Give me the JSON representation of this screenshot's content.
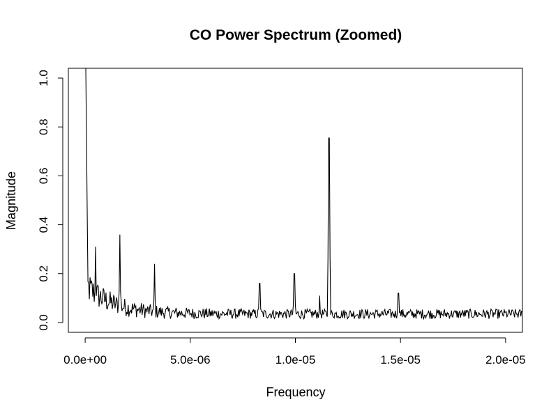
{
  "chart_data": {
    "type": "line",
    "title": "CO Power Spectrum (Zoomed)",
    "xlabel": "Frequency",
    "ylabel": "Magnitude",
    "xlim": [
      -8e-07,
      2.08e-05
    ],
    "ylim": [
      -0.04,
      1.04
    ],
    "x_ticks": [
      {
        "value": 0,
        "label": "0.0e+00"
      },
      {
        "value": 5e-06,
        "label": "5.0e-06"
      },
      {
        "value": 1e-05,
        "label": "1.0e-05"
      },
      {
        "value": 1.5e-05,
        "label": "1.5e-05"
      },
      {
        "value": 2e-05,
        "label": "2.0e-05"
      }
    ],
    "y_ticks": [
      {
        "value": 0.0,
        "label": "0.0"
      },
      {
        "value": 0.2,
        "label": "0.2"
      },
      {
        "value": 0.4,
        "label": "0.4"
      },
      {
        "value": 0.6,
        "label": "0.6"
      },
      {
        "value": 0.8,
        "label": "0.8"
      },
      {
        "value": 1.0,
        "label": "1.0"
      }
    ],
    "grid": false,
    "legend": "none",
    "line_color": "#000000",
    "x_step": 3.3e-08,
    "x_start": 0,
    "x_end": 2.08e-05,
    "peaks": [
      {
        "x": 0.0,
        "y": 1.2
      },
      {
        "x": 5e-07,
        "y": 0.31
      },
      {
        "x": 1.65e-06,
        "y": 0.36
      },
      {
        "x": 3.3e-06,
        "y": 0.24
      },
      {
        "x": 8.3e-06,
        "y": 0.16
      },
      {
        "x": 9.95e-06,
        "y": 0.2
      },
      {
        "x": 1.115e-05,
        "y": 0.11
      },
      {
        "x": 1.16e-05,
        "y": 0.755
      },
      {
        "x": 1.49e-05,
        "y": 0.12
      }
    ]
  }
}
